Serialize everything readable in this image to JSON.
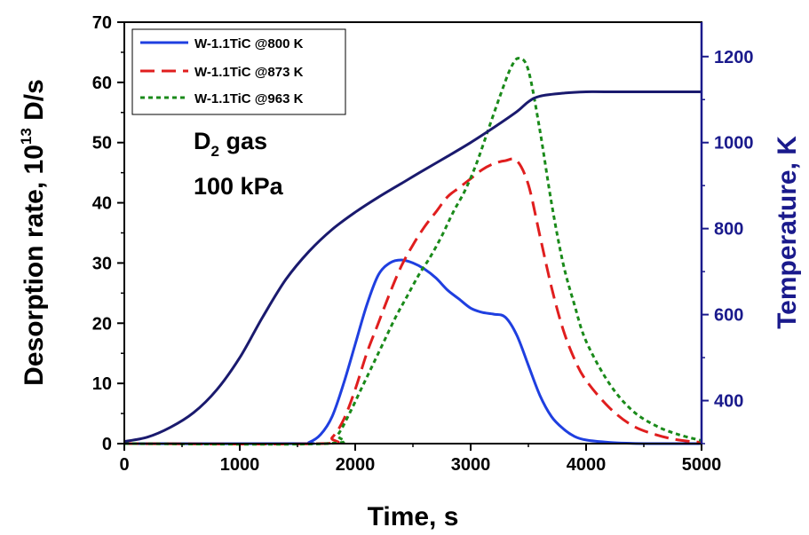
{
  "chart_data": {
    "type": "line",
    "xlabel": "Time, s",
    "ylabel_left": {
      "text": "Desorption rate, 10",
      "sup": "13",
      "tail": " D/s"
    },
    "ylabel_right": "Temperature, K",
    "xlim": [
      0,
      5000
    ],
    "ylim_left": [
      0,
      70
    ],
    "ylim_right": [
      300,
      1280
    ],
    "x_ticks": [
      "0",
      "1000",
      "2000",
      "3000",
      "4000",
      "5000"
    ],
    "y_ticks_left": [
      "0",
      "10",
      "20",
      "30",
      "40",
      "50",
      "60",
      "70"
    ],
    "y_ticks_right": [
      "400",
      "600",
      "800",
      "1000",
      "1200"
    ],
    "grid": false,
    "legend_position": "top-left",
    "annotation": {
      "line1_main": "D",
      "line1_sub": "2",
      "line1_tail": " gas",
      "line2": "100 kPa"
    },
    "colors": {
      "axis_right": "#1a1a8c",
      "temperature": "#1a1a6e"
    },
    "series": [
      {
        "name": "W-1.1TiC @800 K",
        "color": "#1f3fe0",
        "dash": "solid",
        "axis": "left",
        "x": [
          0,
          1500,
          1600,
          1700,
          1800,
          1900,
          2000,
          2100,
          2200,
          2300,
          2400,
          2500,
          2600,
          2700,
          2800,
          2900,
          3000,
          3100,
          3200,
          3300,
          3400,
          3500,
          3600,
          3700,
          3800,
          3900,
          4000,
          4200,
          4400,
          4600,
          5000
        ],
        "y": [
          0,
          0,
          0.2,
          1.5,
          4.5,
          10,
          16.5,
          23,
          28,
          30,
          30.5,
          30,
          29,
          27.5,
          25.5,
          24,
          22.5,
          21.8,
          21.5,
          21,
          18,
          13,
          8,
          4.5,
          2.5,
          1.2,
          0.6,
          0.2,
          0.05,
          0,
          0
        ]
      },
      {
        "name": "W-1.1TiC @873 K",
        "color": "#e01e1e",
        "dash": "long",
        "axis": "left",
        "x": [
          0,
          1700,
          1800,
          1900,
          2000,
          2100,
          2200,
          2300,
          2400,
          2500,
          2600,
          2700,
          2800,
          2900,
          3000,
          3100,
          3200,
          3300,
          3400,
          3500,
          3600,
          3700,
          3800,
          3900,
          4000,
          4200,
          4400,
          4600,
          4800,
          5000
        ],
        "y": [
          0,
          0,
          1,
          4,
          9,
          15,
          20,
          25,
          29.5,
          33,
          36,
          38.5,
          41,
          42.5,
          44,
          45.5,
          46.5,
          47,
          47,
          43,
          34.5,
          26,
          19,
          14,
          10.5,
          6,
          3,
          1.5,
          0.6,
          0.2
        ]
      },
      {
        "name": "W-1.1TiC @963 K",
        "color": "#1a8a1a",
        "dash": "short",
        "axis": "left",
        "x": [
          0,
          1750,
          1850,
          1950,
          2050,
          2150,
          2250,
          2350,
          2450,
          2550,
          2650,
          2750,
          2850,
          2950,
          3050,
          3150,
          3250,
          3350,
          3420,
          3500,
          3600,
          3700,
          3800,
          3900,
          4000,
          4200,
          4400,
          4600,
          4800,
          5000
        ],
        "y": [
          0,
          0,
          1.5,
          5,
          9,
          13,
          17,
          21,
          24.5,
          28,
          31,
          34.5,
          38.5,
          42,
          46.5,
          52,
          57.5,
          62.5,
          64,
          62,
          52,
          40,
          30,
          23,
          17,
          10,
          5.5,
          3,
          1.5,
          0.5
        ]
      },
      {
        "axis": "right",
        "color": "#1a1a6e",
        "x": [
          0,
          200,
          400,
          600,
          800,
          1000,
          1200,
          1400,
          1600,
          1800,
          2000,
          2200,
          2400,
          2600,
          2800,
          3000,
          3200,
          3400,
          3500,
          3600,
          3800,
          4000,
          4200,
          5000
        ],
        "y": [
          305,
          315,
          338,
          372,
          425,
          500,
          595,
          682,
          747,
          798,
          838,
          873,
          905,
          937,
          968,
          1000,
          1035,
          1072,
          1095,
          1108,
          1115,
          1118,
          1118,
          1118
        ]
      }
    ]
  }
}
